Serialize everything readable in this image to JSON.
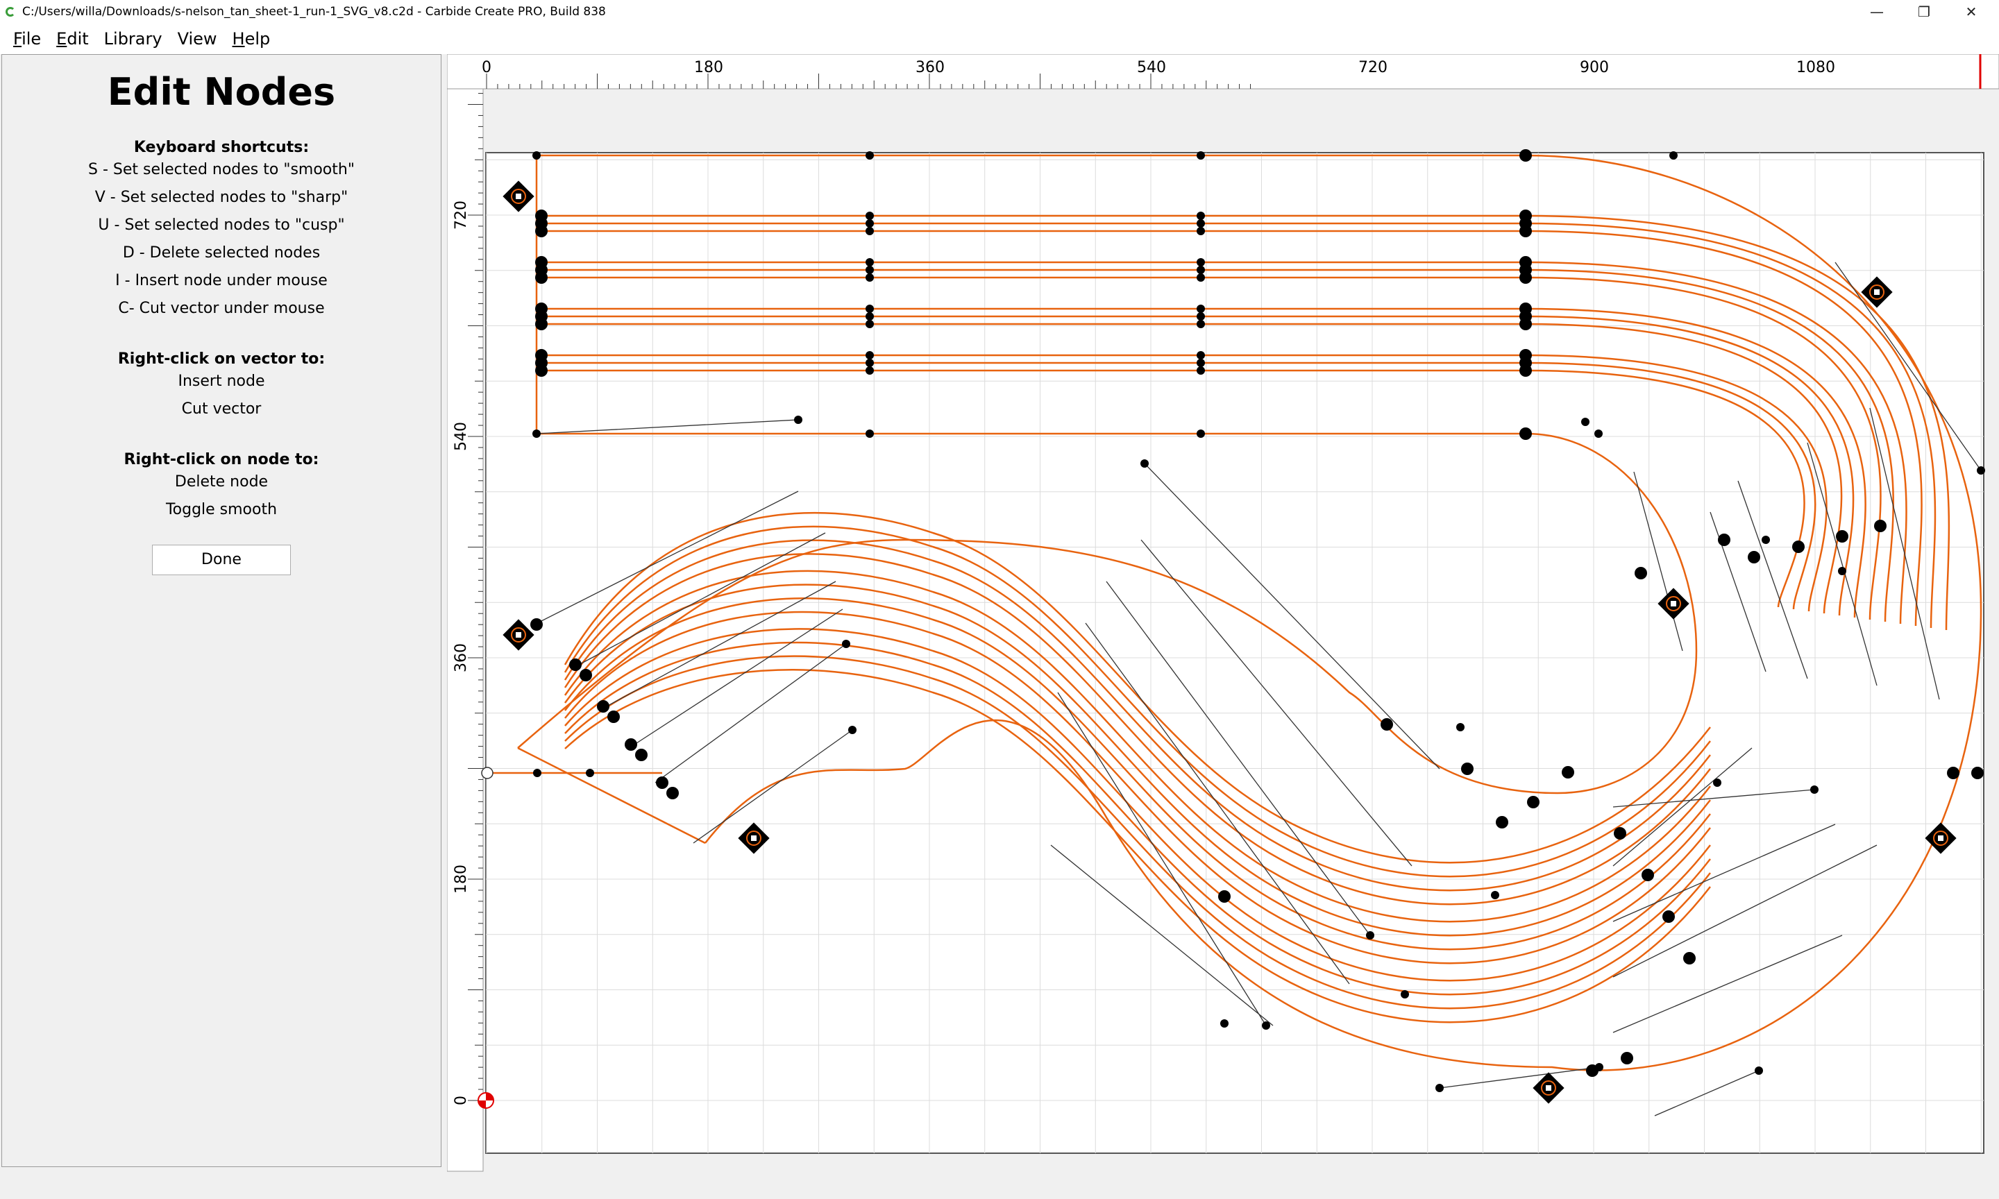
{
  "window": {
    "title": "C:/Users/willa/Downloads/s-nelson_tan_sheet-1_run-1_SVG_v8.c2d - Carbide Create PRO, Build 838",
    "minimize_glyph": "—",
    "maximize_glyph": "❐",
    "close_glyph": "✕"
  },
  "menu": [
    {
      "label": "File",
      "mnemonic": "F",
      "rest": "ile"
    },
    {
      "label": "Edit",
      "mnemonic": "E",
      "rest": "dit"
    },
    {
      "label": "Library",
      "mnemonic": "",
      "rest": "Library"
    },
    {
      "label": "View",
      "mnemonic": "",
      "rest": "View"
    },
    {
      "label": "Help",
      "mnemonic": "H",
      "rest": "elp"
    }
  ],
  "panel": {
    "title": "Edit Nodes",
    "shortcuts_heading": "Keyboard shortcuts:",
    "shortcuts": [
      "S - Set selected nodes to \"smooth\"",
      "V - Set selected nodes to \"sharp\"",
      "U - Set selected nodes to \"cusp\"",
      "D - Delete selected nodes",
      "I - Insert node under mouse",
      "C- Cut vector under mouse"
    ],
    "vector_heading": "Right-click on vector to:",
    "vector_actions": [
      "Insert node",
      "Cut vector"
    ],
    "node_heading": "Right-click on node to:",
    "node_actions": [
      "Delete node",
      "Toggle smooth"
    ],
    "done_label": "Done"
  },
  "ruler": {
    "x_labels": [
      "0",
      "180",
      "360",
      "540",
      "720",
      "900",
      "1080"
    ],
    "y_labels": [
      "720",
      "540",
      "360",
      "180",
      "0"
    ]
  },
  "colors": {
    "vector": "#e8630f",
    "node": "#000000",
    "grid": "#d8d8d8",
    "origin": "#e00000"
  }
}
